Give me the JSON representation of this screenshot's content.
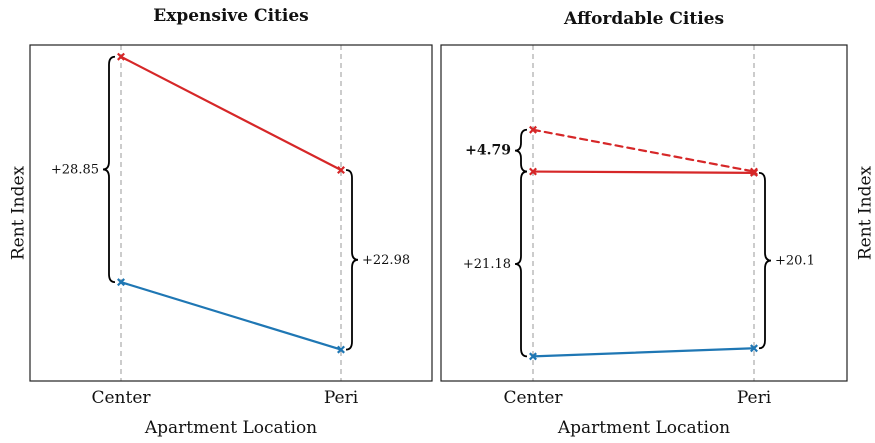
{
  "chart_data": [
    {
      "type": "line",
      "title": "Expensive Cities",
      "xlabel": "Apartment Location",
      "ylabel": "Rent Index",
      "categories": [
        "Center",
        "Peri"
      ],
      "series": [
        {
          "values": [
            100.0,
            85.5
          ],
          "color": "#d62728",
          "style": "solid"
        },
        {
          "values": [
            71.15,
            62.52
          ],
          "color": "#1f77b4",
          "style": "solid"
        }
      ],
      "annotations": [
        {
          "text": "+28.85",
          "category": "Center",
          "from": 71.15,
          "to": 100.0,
          "bold": false
        },
        {
          "text": "+22.98",
          "category": "Peri",
          "from": 62.52,
          "to": 85.5,
          "bold": false
        }
      ],
      "ylim": [
        58.5,
        101.5
      ],
      "grid": "vertical dashed at categories",
      "ylabel_side": "left"
    },
    {
      "type": "line",
      "title": "Affordable Cities",
      "xlabel": "Apartment Location",
      "ylabel": "Rent Index",
      "categories": [
        "Center",
        "Peri"
      ],
      "series": [
        {
          "values": [
            84.79,
            80.0
          ],
          "color": "#d62728",
          "style": "dashed"
        },
        {
          "values": [
            80.0,
            79.85
          ],
          "color": "#d62728",
          "style": "solid"
        },
        {
          "values": [
            58.82,
            59.75
          ],
          "color": "#1f77b4",
          "style": "solid"
        }
      ],
      "annotations": [
        {
          "text": "+4.79",
          "category": "Center",
          "from": 80.0,
          "to": 84.79,
          "bold": true
        },
        {
          "text": "+21.18",
          "category": "Center",
          "from": 58.82,
          "to": 80.0,
          "bold": false
        },
        {
          "text": "+20.1",
          "category": "Peri",
          "from": 59.75,
          "to": 79.85,
          "bold": false
        }
      ],
      "ylim": [
        56.0,
        94.5
      ],
      "grid": "vertical dashed at categories",
      "ylabel_side": "right"
    }
  ]
}
